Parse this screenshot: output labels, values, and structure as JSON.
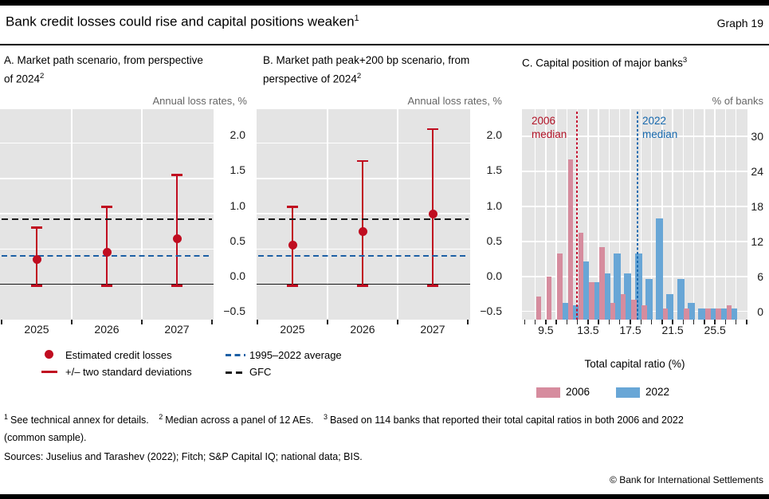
{
  "header": {
    "title": "Bank credit losses could rise and capital positions weaken",
    "title_sup": "1",
    "graph_label": "Graph 19"
  },
  "panel_a": {
    "title": "A. Market path scenario, from perspective of 2024",
    "sup": "2",
    "unit": "Annual loss rates, %"
  },
  "panel_b": {
    "title": "B. Market path peak+200 bp scenario, from perspective of 2024",
    "sup": "2",
    "unit": "Annual loss rates, %"
  },
  "panel_c": {
    "title": "C. Capital position of major banks",
    "sup": "3",
    "unit": "% of banks",
    "xlabel": "Total capital ratio (%)",
    "median_label_2006": "2006 median",
    "median_label_2022": "2022 median",
    "legend_2006": "2006",
    "legend_2022": "2022"
  },
  "legend_ab": {
    "item1": "Estimated credit losses",
    "item2": "+/– two standard deviations",
    "item3": "1995–2022 average",
    "item4": "GFC"
  },
  "footnotes": {
    "fn1_sup": "1",
    "fn1": "See technical annex for details.",
    "fn2_sup": "2",
    "fn2": "Median across a panel of 12 AEs.",
    "fn3_sup": "3",
    "fn3": "Based on 114 banks that reported their total capital ratios in both 2006 and 2022 (common sample).",
    "sources": "Sources: Juselius and Tarashev (2022); Fitch; S&P Capital IQ; national data; BIS.",
    "copyright": "© Bank for International Settlements"
  },
  "colors": {
    "red": "#c00d20",
    "pink": "#d68c9e",
    "blue_bar": "#68a6d6",
    "blue_line": "#1d60a5",
    "black_dash": "#1a1a1a",
    "median_red": "#c41230",
    "median_blue": "#1a6bb0",
    "median_red_text": "#b11226",
    "median_blue_text": "#1668ad",
    "panel_bg": "#e4e4e4"
  },
  "chart_data": [
    {
      "id": "A",
      "type": "scatter",
      "subtype": "errorbar",
      "title": "A. Market path scenario, from perspective of 2024",
      "ylabel": "Annual loss rates, %",
      "categories": [
        "2025",
        "2026",
        "2027"
      ],
      "dots": [
        0.35,
        0.45,
        0.65
      ],
      "whisker_high": [
        0.8,
        1.1,
        1.55
      ],
      "whisker_low": [
        -0.02,
        -0.02,
        -0.02
      ],
      "ref_lines": [
        {
          "name": "GFC",
          "value": 0.92,
          "style": "black-dashed"
        },
        {
          "name": "1995–2022 average",
          "value": 0.4,
          "style": "blue-dashed"
        }
      ],
      "yticks": [
        {
          "v": 2.0,
          "label": "2.0"
        },
        {
          "v": 1.5,
          "label": "1.5"
        },
        {
          "v": 1.0,
          "label": "1.0"
        },
        {
          "v": 0.5,
          "label": "0.5"
        },
        {
          "v": 0.0,
          "label": "0.0"
        },
        {
          "v": -0.5,
          "label": "−0.5"
        }
      ],
      "ylim": [
        -0.5,
        2.5
      ],
      "grid": true
    },
    {
      "id": "B",
      "type": "scatter",
      "subtype": "errorbar",
      "title": "B. Market path peak+200 bp scenario, from perspective of 2024",
      "ylabel": "Annual loss rates, %",
      "categories": [
        "2025",
        "2026",
        "2027"
      ],
      "dots": [
        0.55,
        0.75,
        1.0
      ],
      "whisker_high": [
        1.1,
        1.75,
        2.2
      ],
      "whisker_low": [
        -0.02,
        -0.02,
        -0.02
      ],
      "ref_lines": [
        {
          "name": "GFC",
          "value": 0.92,
          "style": "black-dashed"
        },
        {
          "name": "1995–2022 average",
          "value": 0.4,
          "style": "blue-dashed"
        }
      ],
      "yticks": [
        {
          "v": 2.0,
          "label": "2.0"
        },
        {
          "v": 1.5,
          "label": "1.5"
        },
        {
          "v": 1.0,
          "label": "1.0"
        },
        {
          "v": 0.5,
          "label": "0.5"
        },
        {
          "v": 0.0,
          "label": "0.0"
        },
        {
          "v": -0.5,
          "label": "−0.5"
        }
      ],
      "ylim": [
        -0.5,
        2.5
      ],
      "grid": true
    },
    {
      "id": "C",
      "type": "bar",
      "subtype": "histogram",
      "title": "C. Capital position of major banks",
      "xlabel": "Total capital ratio (%)",
      "ylabel": "% of banks",
      "bin_centers": [
        8,
        9,
        10,
        11,
        12,
        13,
        14,
        15,
        16,
        17,
        18,
        19,
        20,
        21,
        22,
        23,
        24,
        25,
        26,
        27
      ],
      "series": [
        {
          "name": "2006",
          "values": [
            0,
            2.5,
            6,
            10,
            26,
            13.5,
            5,
            11,
            1.5,
            3,
            2,
            1,
            0,
            0.5,
            0,
            0.5,
            0,
            0.5,
            0.5,
            1
          ]
        },
        {
          "name": "2022",
          "values": [
            0,
            0,
            0,
            1.5,
            1,
            8.5,
            5,
            6.5,
            10,
            6.5,
            10,
            5.5,
            16,
            3,
            5.5,
            1.5,
            0.5,
            0.5,
            0.5,
            0.5
          ]
        }
      ],
      "medians": [
        {
          "name": "2006 median",
          "value": 12.45
        },
        {
          "name": "2022 median",
          "value": 18.2
        }
      ],
      "yticks": [
        {
          "v": 30,
          "label": "30"
        },
        {
          "v": 24,
          "label": "24"
        },
        {
          "v": 18,
          "label": "18"
        },
        {
          "v": 12,
          "label": "12"
        },
        {
          "v": 6,
          "label": "6"
        },
        {
          "v": 0,
          "label": "0"
        }
      ],
      "ylim": [
        -1.4,
        34.7
      ],
      "xtick_values": [
        7.5,
        8.5,
        9.5,
        10.5,
        11.5,
        12.5,
        13.5,
        14.5,
        15.5,
        16.5,
        17.5,
        18.5,
        19.5,
        20.5,
        21.5,
        22.5,
        23.5,
        24.5,
        25.5,
        26.5,
        27.5,
        28.5
      ],
      "xtick_labels": [
        {
          "v": 9.5,
          "label": "9.5"
        },
        {
          "v": 13.5,
          "label": "13.5"
        },
        {
          "v": 17.5,
          "label": "17.5"
        },
        {
          "v": 21.5,
          "label": "21.5"
        },
        {
          "v": 25.5,
          "label": "25.5"
        }
      ],
      "grid": true
    }
  ]
}
